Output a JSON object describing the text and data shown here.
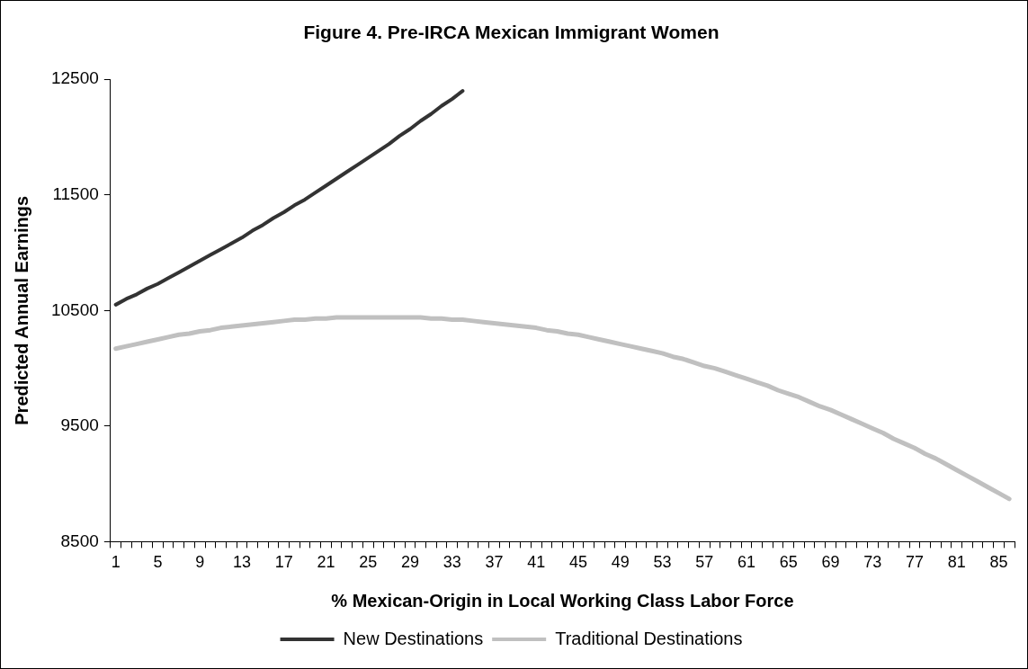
{
  "chart_data": {
    "type": "line",
    "title": "Figure 4. Pre-IRCA Mexican Immigrant Women",
    "xlabel": "% Mexican-Origin in Local Working Class Labor Force",
    "ylabel": "Predicted Annual Earnings",
    "categories": [
      "1",
      null,
      null,
      null,
      "5",
      null,
      null,
      null,
      "9",
      null,
      null,
      null,
      "13",
      null,
      null,
      null,
      "17",
      null,
      null,
      null,
      "21",
      null,
      null,
      null,
      "25",
      null,
      null,
      null,
      "29",
      null,
      null,
      null,
      "33",
      null,
      null,
      null,
      "37",
      null,
      null,
      null,
      "41",
      null,
      null,
      null,
      "45",
      null,
      null,
      null,
      "49",
      null,
      null,
      null,
      "53",
      null,
      null,
      null,
      "57",
      null,
      null,
      null,
      "61",
      null,
      null,
      null,
      "65",
      null,
      null,
      null,
      "69",
      null,
      null,
      null,
      "73",
      null,
      null,
      null,
      "77",
      null,
      null,
      null,
      "81",
      null,
      null,
      null,
      "85",
      null
    ],
    "series": [
      {
        "name": "New Destinations",
        "color": "#333333",
        "values": [
          10550,
          10600,
          10640,
          10690,
          10730,
          10780,
          10830,
          10880,
          10930,
          10980,
          11030,
          11080,
          11130,
          11190,
          11240,
          11300,
          11350,
          11410,
          11460,
          11520,
          11580,
          11640,
          11700,
          11760,
          11820,
          11880,
          11940,
          12010,
          12070,
          12140,
          12200,
          12270,
          12330,
          12400,
          null,
          null,
          null,
          null,
          null,
          null,
          null,
          null,
          null,
          null,
          null,
          null,
          null,
          null,
          null,
          null,
          null,
          null,
          null,
          null,
          null,
          null,
          null,
          null,
          null,
          null,
          null,
          null,
          null,
          null,
          null,
          null,
          null,
          null,
          null,
          null,
          null,
          null,
          null,
          null,
          null,
          null,
          null,
          null,
          null,
          null,
          null,
          null,
          null,
          null,
          null,
          null
        ]
      },
      {
        "name": "Traditional Destinations",
        "color": "#c0c0c0",
        "values": [
          10170,
          10190,
          10210,
          10230,
          10250,
          10270,
          10290,
          10300,
          10320,
          10330,
          10350,
          10360,
          10370,
          10380,
          10390,
          10400,
          10410,
          10420,
          10420,
          10430,
          10430,
          10440,
          10440,
          10440,
          10440,
          10440,
          10440,
          10440,
          10440,
          10440,
          10430,
          10430,
          10420,
          10420,
          10410,
          10400,
          10390,
          10380,
          10370,
          10360,
          10350,
          10330,
          10320,
          10300,
          10290,
          10270,
          10250,
          10230,
          10210,
          10190,
          10170,
          10150,
          10130,
          10100,
          10080,
          10050,
          10020,
          10000,
          9970,
          9940,
          9910,
          9880,
          9850,
          9810,
          9780,
          9750,
          9710,
          9670,
          9640,
          9600,
          9560,
          9520,
          9480,
          9440,
          9390,
          9350,
          9310,
          9260,
          9220,
          9170,
          9120,
          9070,
          9020,
          8970,
          8920,
          8870
        ]
      }
    ],
    "ylim": [
      8500,
      12500
    ],
    "yticks": [
      8500,
      9500,
      10500,
      11500,
      12500
    ],
    "grid": false,
    "legend": "bottom",
    "marker": "none",
    "line_style": "solid"
  }
}
